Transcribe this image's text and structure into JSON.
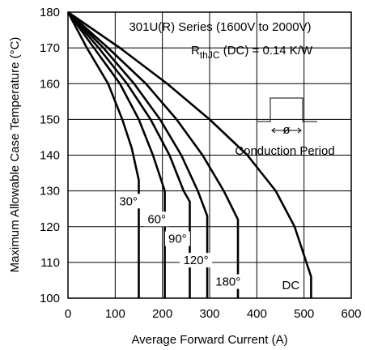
{
  "chart_data": {
    "type": "line",
    "title": "301U(R) Series (1600V to 2000V)",
    "rth": {
      "main": "R",
      "sub": "thJC",
      "rest": " (DC) = 0.14 K/W"
    },
    "xlabel": "Average Forward Current (A)",
    "ylabel": "Maximum Allowable Case Temperature (°C)",
    "xlim": [
      0,
      600
    ],
    "ylim": [
      100,
      180
    ],
    "xticks": [
      0,
      100,
      200,
      300,
      400,
      500,
      600
    ],
    "yticks": [
      100,
      110,
      120,
      130,
      140,
      150,
      160,
      170,
      180
    ],
    "grid": true,
    "inset_label": "Conduction Period",
    "inset_symbol": "ø",
    "series": [
      {
        "label": "30°",
        "label_at": [
          128,
          126
        ],
        "points": [
          [
            0,
            180
          ],
          [
            40,
            170
          ],
          [
            85,
            160
          ],
          [
            115,
            150
          ],
          [
            135,
            142
          ],
          [
            150,
            133
          ],
          [
            150,
            100
          ]
        ]
      },
      {
        "label": "60°",
        "label_at": [
          188,
          121
        ],
        "points": [
          [
            0,
            180
          ],
          [
            55,
            170
          ],
          [
            110,
            160
          ],
          [
            150,
            150
          ],
          [
            180,
            140
          ],
          [
            205,
            130
          ],
          [
            205,
            100
          ]
        ]
      },
      {
        "label": "90°",
        "label_at": [
          232,
          115.5
        ],
        "points": [
          [
            0,
            180
          ],
          [
            65,
            170
          ],
          [
            125,
            160
          ],
          [
            175,
            150
          ],
          [
            215,
            140
          ],
          [
            245,
            130
          ],
          [
            258,
            127
          ],
          [
            258,
            100
          ]
        ]
      },
      {
        "label": "120°",
        "label_at": [
          271,
          109.5
        ],
        "points": [
          [
            0,
            180
          ],
          [
            75,
            170
          ],
          [
            140,
            160
          ],
          [
            195,
            150
          ],
          [
            240,
            140
          ],
          [
            275,
            130
          ],
          [
            295,
            123
          ],
          [
            295,
            100
          ]
        ]
      },
      {
        "label": "180°",
        "label_at": [
          339,
          103.5
        ],
        "points": [
          [
            0,
            180
          ],
          [
            85,
            170
          ],
          [
            165,
            160
          ],
          [
            230,
            150
          ],
          [
            285,
            140
          ],
          [
            330,
            130
          ],
          [
            360,
            122
          ],
          [
            360,
            100
          ]
        ]
      },
      {
        "label": "DC",
        "label_at": [
          472,
          102.5
        ],
        "points": [
          [
            0,
            180
          ],
          [
            110,
            170
          ],
          [
            210,
            160
          ],
          [
            300,
            150
          ],
          [
            380,
            140
          ],
          [
            440,
            130
          ],
          [
            480,
            120
          ],
          [
            505,
            110
          ],
          [
            515,
            106
          ],
          [
            515,
            100
          ]
        ]
      }
    ]
  }
}
